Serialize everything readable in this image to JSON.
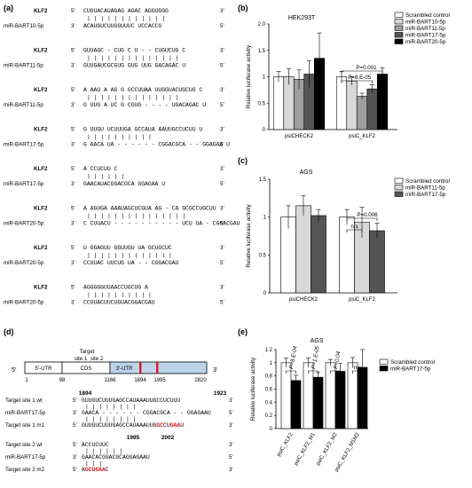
{
  "panel_a": {
    "label": "(a)",
    "pairs": [
      {
        "top": {
          "name": "KLF2",
          "p": "5'",
          "seq": "CUGUACAUAGAG AGAC AGGUGGG",
          "e": "3'"
        },
        "bars": "| | | | |   | | | | | | |",
        "bot": {
          "name": "miR-BART10-5p",
          "p": "3'",
          "seq": "ACAUGUCUUGGUUUC UCCACCG",
          "e": "5'"
        }
      },
      {
        "top": {
          "name": "KLF2",
          "p": "5'",
          "seq": "GUUAGC - CUG C U - - CUGUCUG C",
          "e": "3'"
        },
        "bars": "| | | | | |   | | |     | | | | |",
        "bot": {
          "name": "miR-BART11-5p",
          "p": "3'",
          "seq": "GUUGAUCGCGUG GUG UUG GACAGAC U",
          "e": "5'"
        }
      },
      {
        "top": {
          "name": "KLF2",
          "p": "5'",
          "seq": "A AAU A AG G GCCUUAA UUGGUACUGCUG C",
          "e": "3'"
        },
        "bars": "| | |   | |     | | |       | | | | | |",
        "bot": {
          "name": "miR-BART11-5p",
          "p": "3'",
          "seq": "G UUG A UC G CGUG - - - - UGACAGAC U",
          "e": "5'"
        }
      },
      {
        "top": {
          "name": "KLF2",
          "p": "5'",
          "seq": "G UUGU UCUUUGA GCCAUA AAUUGCCUCUU U",
          "e": "3'"
        },
        "bars": "|       |             | | | | | | | |",
        "bot": {
          "name": "miR-BART17-5p",
          "p": "3'",
          "seq": "G AACA UA - - - - - - CGGACGCA - - GGAGAA U",
          "e": "5'"
        }
      },
      {
        "top": {
          "name": "KLF2",
          "p": "5'",
          "seq": "A CCUCUU C",
          "e": "3'"
        },
        "bars": "| | | | | |",
        "bot": {
          "name": "miR-BART17-5p",
          "p": "3'",
          "seq": "GAACAUACGGACGCA GGAGAA U",
          "e": "5'"
        }
      },
      {
        "top": {
          "name": "KLF2",
          "p": "5'",
          "seq": "A AGUGA AAAUAGCUCGUA AG - CA GCGCCUGCUU",
          "e": "3'"
        },
        "bars": "| | | | |             | | |   | | | | | | |",
        "bot": {
          "name": "miR-BART20-5p",
          "p": "3'",
          "seq": "C CUUACU - - - - - - - - - - UCU UA - CGGACGAU",
          "e": "5'"
        }
      },
      {
        "top": {
          "name": "KLF2",
          "p": "5'",
          "seq": "U GGAGUU GGUUGU UA GCUGCUC",
          "e": "3'"
        },
        "bars": "| | |   | | |   | | | | | | |",
        "bot": {
          "name": "miR-BART20-5p",
          "p": "3'",
          "seq": "CCUUAC UUCUG UA - - CGGACGAU",
          "e": "5'"
        }
      },
      {
        "top": {
          "name": "KLF2",
          "p": "5'",
          "seq": "AGGGGGUUAACCUGCUG A",
          "e": "3'"
        },
        "bars": "|   | | | | | | | | |",
        "bot": {
          "name": "miR-BART20-5p",
          "p": "3'",
          "seq": "CCUUACUUCUGUACGGACGAU",
          "e": "5'"
        }
      }
    ]
  },
  "panel_b": {
    "label": "(b)",
    "title": "HEK293T",
    "ylabel": "Relative luciferase activity",
    "groups": [
      "psiCHECK2",
      "psiC_KLF2"
    ],
    "series": [
      "Scrambled control",
      "miR-BART10-5p",
      "miR-BART11-5p",
      "miR-BART17-5p",
      "miR-BART20-5p"
    ],
    "colors": [
      "#ffffff",
      "#d8d8d8",
      "#9e9e9e",
      "#555555",
      "#000000"
    ],
    "sig": [
      "P=0.001",
      "P=8.E-05"
    ]
  },
  "panel_c": {
    "label": "(c)",
    "title": "AGS",
    "ylabel": "Relative luciferase activity",
    "groups": [
      "psiCHECK2",
      "psiC_KLF2"
    ],
    "series": [
      "Scrambled control",
      "miR-BART11-5p",
      "miR-BART17-5p"
    ],
    "colors": [
      "#ffffff",
      "#d8d8d8",
      "#555555"
    ],
    "sig": [
      "P=0.006",
      "n.s"
    ]
  },
  "panel_d": {
    "label": "(d)",
    "five": "5'",
    "three": "3'",
    "utr5": "5'-UTR",
    "cds": "CDS",
    "utr3": "3'-UTR",
    "target_lbl": "Target",
    "site1_lbl": "site 1",
    "site2_lbl": "site 2",
    "positions": [
      "1",
      "98",
      "1166",
      "1894",
      "1995",
      "2820"
    ],
    "site1_start": "1894",
    "site1_end": "1923",
    "site2_start": "1995",
    "site2_end": "2002",
    "s1_rows": [
      {
        "name": "Target site 1 wt",
        "p": "5'",
        "seq": "GUUGUCUUUGAGCCAUAAAUUGCCUCUUU",
        "e": "3'"
      },
      {
        "bars": "|               | | | | | | |"
      },
      {
        "name": "miR-BART17-5p",
        "p": "3'",
        "seq": "GAACA - - - - - - CGGACGCA - - GGAGAAU",
        "e": "5'"
      },
      {
        "bars": "|               | | | | | | |"
      },
      {
        "name": "Target site 1 m1",
        "p": "5'",
        "seq_plain": "GUUGUCUUUGAGCCAUAAAUUG",
        "seq_red1": "GC",
        "seq_mid": "CU",
        "seq_red2": "GAA",
        "seq_end": "U",
        "e": "3'"
      }
    ],
    "s2_rows": [
      {
        "name": "Target site 2 wt",
        "p": "5'",
        "seq": "ACCUCUUC",
        "e": "3'"
      },
      {
        "bars": "| | | | | |"
      },
      {
        "name": "miR-BART17-5p",
        "p": "3'",
        "seq": "GAACACGGACGCAGGAGAAU",
        "e": "5'"
      },
      {
        "bars": "|   |     |"
      },
      {
        "name": "Target site 2 m2",
        "p": "5'",
        "seq_plain": "A",
        "seq_red1": "GCUGAA",
        "seq_end": "C",
        "e": "3'"
      }
    ]
  },
  "panel_e": {
    "label": "(e)",
    "title": "AGS",
    "ylabel": "Relative luciferase activity",
    "groups": [
      "psiC_KLF2",
      "psiC_KLF2_M1",
      "psiC_KLF2_M2",
      "psiC_KLF2_M1M2"
    ],
    "series": [
      "Scrambled control",
      "miR-BART17-5p"
    ],
    "colors": [
      "#ffffff",
      "#000000"
    ],
    "sig": [
      "P=8.E-04",
      "P=1.E-05",
      "P=0.04",
      "n.s"
    ]
  },
  "chart_data": [
    {
      "type": "bar",
      "title": "HEK293T",
      "ylabel": "Relative luciferase activity",
      "categories": [
        "psiCHECK2",
        "psiC_KLF2"
      ],
      "ylim": [
        0,
        2.0
      ],
      "yticks": [
        "0",
        "0.5",
        "1",
        "1.5",
        "2.0"
      ],
      "legend": "top-right",
      "series": [
        {
          "name": "Scrambled control",
          "values": [
            1.0,
            1.0
          ],
          "errors": [
            0.1,
            0.1
          ]
        },
        {
          "name": "miR-BART10-5p",
          "values": [
            1.0,
            0.92
          ],
          "errors": [
            0.15,
            0.08
          ]
        },
        {
          "name": "miR-BART11-5p",
          "values": [
            0.95,
            0.63
          ],
          "errors": [
            0.18,
            0.06
          ]
        },
        {
          "name": "miR-BART17-5p",
          "values": [
            1.05,
            0.77
          ],
          "errors": [
            0.25,
            0.08
          ]
        },
        {
          "name": "miR-BART20-5p",
          "values": [
            1.35,
            1.05
          ],
          "errors": [
            0.48,
            0.12
          ]
        }
      ]
    },
    {
      "type": "bar",
      "title": "AGS",
      "ylabel": "Relative luciferase activity",
      "categories": [
        "psiCHECK2",
        "psiC_KLF2"
      ],
      "ylim": [
        0,
        1.5
      ],
      "yticks": [
        "0",
        "0.5",
        "1",
        "1.5"
      ],
      "legend": "top-right",
      "series": [
        {
          "name": "Scrambled control",
          "values": [
            1.0,
            1.0
          ],
          "errors": [
            0.15,
            0.1
          ]
        },
        {
          "name": "miR-BART11-5p",
          "values": [
            1.15,
            0.93
          ],
          "errors": [
            0.13,
            0.2
          ]
        },
        {
          "name": "miR-BART17-5p",
          "values": [
            1.02,
            0.82
          ],
          "errors": [
            0.08,
            0.1
          ]
        }
      ]
    },
    {
      "type": "bar",
      "title": "AGS",
      "ylabel": "Relative luciferase activity",
      "categories": [
        "psiC_KLF2",
        "psiC_KLF2_M1",
        "psiC_KLF2_M2",
        "psiC_KLF2_M1M2"
      ],
      "ylim": [
        0,
        1.2
      ],
      "yticks": [
        "0",
        "0.2",
        "0.4",
        "0.6",
        "0.8",
        "1",
        "1.2"
      ],
      "legend": "top-right",
      "series": [
        {
          "name": "Scrambled control",
          "values": [
            1.0,
            1.0,
            1.0,
            1.0
          ],
          "errors": [
            0.07,
            0.07,
            0.05,
            0.08
          ]
        },
        {
          "name": "miR-BART17-5p",
          "values": [
            0.73,
            0.78,
            0.87,
            0.93
          ],
          "errors": [
            0.08,
            0.07,
            0.12,
            0.27
          ]
        }
      ]
    }
  ]
}
